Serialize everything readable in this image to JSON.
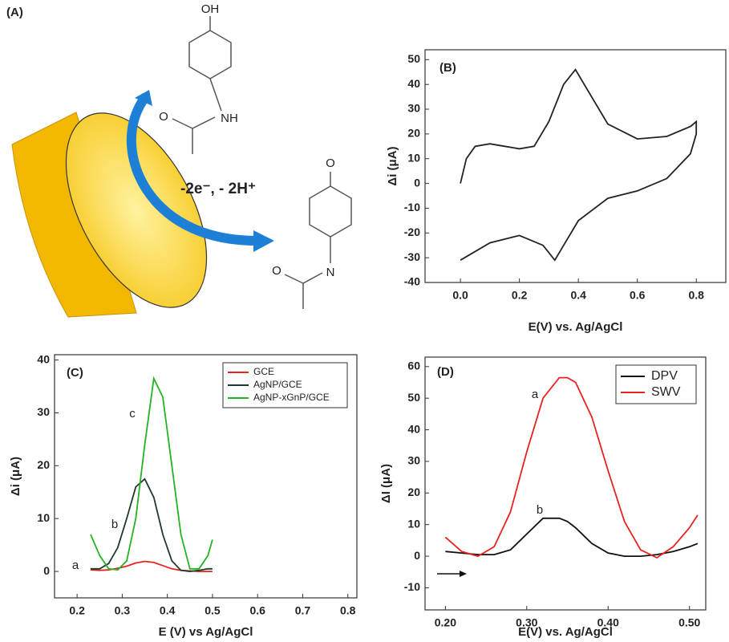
{
  "scheme": {
    "panel_label": "(A)",
    "reactant": [
      "OH",
      "NH",
      "O"
    ],
    "reaction": "-2e⁻, - 2H⁺",
    "product": [
      "O",
      "N",
      "O"
    ]
  },
  "chart_data": [
    {
      "type": "line",
      "panel_label": "(B)",
      "x_label": "E(V) vs. Ag/AgCl",
      "y_label": "Δi (μA)",
      "x": [
        0,
        0.02,
        0.05,
        0.1,
        0.15,
        0.2,
        0.25,
        0.3,
        0.35,
        0.39,
        0.43,
        0.5,
        0.6,
        0.7,
        0.78,
        0.8,
        0.8,
        0.78,
        0.7,
        0.6,
        0.5,
        0.4,
        0.35,
        0.32,
        0.28,
        0.2,
        0.1,
        0
      ],
      "values": [
        0,
        10,
        15,
        16,
        15,
        14,
        15,
        25,
        40,
        46,
        38,
        24,
        18,
        19,
        23,
        25,
        20,
        12,
        2,
        -3,
        -6,
        -15,
        -25,
        -31,
        -25,
        -21,
        -24,
        -31
      ],
      "color": "#222222",
      "xlim": [
        -0.12,
        0.9
      ],
      "ylim": [
        -40,
        54
      ],
      "xticks": [
        {
          "value": 0,
          "label": "0.0"
        },
        0.2,
        0.4,
        0.6,
        0.8
      ],
      "yticks": [
        -40,
        -30,
        -20,
        -10,
        0,
        10,
        20,
        30,
        40,
        50
      ],
      "grid": false
    },
    {
      "type": "line",
      "panel_label": "(C)",
      "x_label": "E (V) vs Ag/AgCl",
      "y_label": "Δi (μA)",
      "x": [
        0.23,
        0.25,
        0.27,
        0.29,
        0.31,
        0.33,
        0.35,
        0.37,
        0.39,
        0.41,
        0.43,
        0.45,
        0.47,
        0.49,
        0.5
      ],
      "series": [
        {
          "name": "GCE",
          "color": "#e8231f",
          "values": [
            0.3,
            0.2,
            0.3,
            0.6,
            1,
            1.6,
            1.9,
            1.7,
            1.1,
            0.5,
            0.2,
            0.1,
            0,
            0,
            0
          ]
        },
        {
          "name": "AgNP/GCE",
          "color": "#1e3a2a",
          "values": [
            0.5,
            0.5,
            1.5,
            4.5,
            10,
            16,
            17.5,
            14,
            7,
            2,
            0.2,
            0,
            0.2,
            0.5,
            0.5
          ]
        },
        {
          "name": "AgNP-xGnP/GCE",
          "color": "#22b422",
          "values": [
            7,
            3,
            0.5,
            0.3,
            2,
            10,
            24,
            36.5,
            33,
            20,
            7,
            0.5,
            0.5,
            3,
            6
          ]
        }
      ],
      "annotations": [
        "a",
        "b",
        "c"
      ],
      "xlim": [
        0.15,
        0.82
      ],
      "ylim": [
        -5,
        41
      ],
      "xticks": [
        0.2,
        0.3,
        0.4,
        0.5,
        0.6,
        0.7,
        0.8
      ],
      "yticks": [
        0,
        10,
        20,
        30,
        40
      ],
      "grid": false,
      "legend": "top-right"
    },
    {
      "type": "line",
      "panel_label": "(D)",
      "x_label": "E(V) vs. Ag/AgCl",
      "y_label": "ΔI (μA)",
      "x": [
        0.2,
        0.22,
        0.24,
        0.26,
        0.28,
        0.3,
        0.32,
        0.34,
        0.35,
        0.36,
        0.38,
        0.4,
        0.42,
        0.44,
        0.46,
        0.48,
        0.5,
        0.51
      ],
      "series": [
        {
          "name": "DPV",
          "color": "#111111",
          "values": [
            1.5,
            1,
            0.5,
            0.5,
            2,
            7,
            12,
            12,
            11,
            9,
            4,
            1,
            0,
            0,
            0.5,
            1.5,
            3,
            4
          ]
        },
        {
          "name": "SWV",
          "color": "#e8231f",
          "values": [
            6,
            1.5,
            0,
            3,
            14,
            33,
            50,
            56.5,
            56.5,
            55,
            44,
            27,
            11,
            2,
            -0.5,
            3,
            9,
            13
          ]
        }
      ],
      "annotations": [
        "a",
        "b"
      ],
      "xlim": [
        0.175,
        0.52
      ],
      "ylim": [
        -17,
        63
      ],
      "xticks": [
        {
          "value": 0.2,
          "label": "0.20"
        },
        {
          "value": 0.3,
          "label": "0.30"
        },
        {
          "value": 0.4,
          "label": "0.40"
        },
        {
          "value": 0.5,
          "label": "0.50"
        }
      ],
      "yticks": [
        -10,
        0,
        10,
        20,
        30,
        40,
        50,
        60
      ],
      "grid": false,
      "legend": "top-right"
    }
  ]
}
